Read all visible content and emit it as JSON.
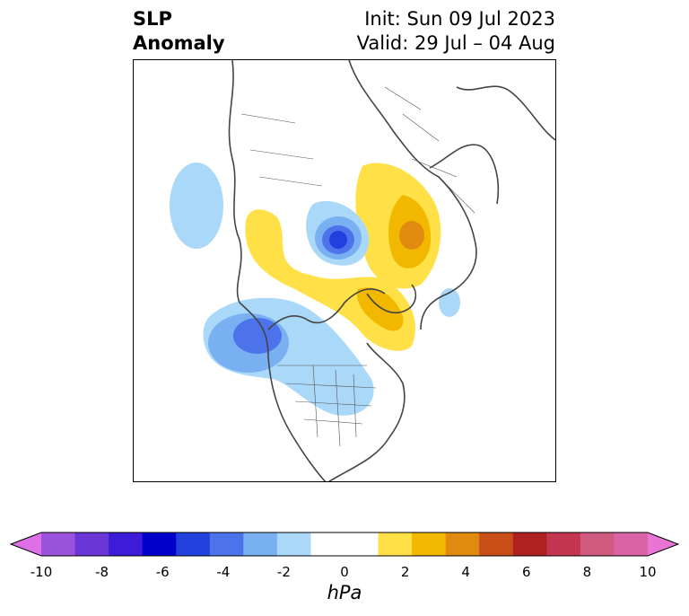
{
  "title": {
    "left_line1": "SLP",
    "left_line2": "Anomaly",
    "init": "Init: Sun 09 Jul 2023",
    "valid": "Valid: 29 Jul – 04 Aug"
  },
  "colorbar": {
    "unit": "hPa",
    "ticks": [
      "-10",
      "-8",
      "-6",
      "-4",
      "-2",
      "0",
      "2",
      "4",
      "6",
      "8",
      "10"
    ],
    "colors": [
      "#dd70e8",
      "#9b53dd",
      "#6a36d8",
      "#3c1cd6",
      "#0000cc",
      "#2240dd",
      "#4d73ea",
      "#78b0f2",
      "#aad8f8",
      "#ffffff",
      "#ffffff",
      "#ffe046",
      "#f2b800",
      "#e08a10",
      "#c85018",
      "#b02020",
      "#c43550",
      "#d05a80",
      "#da62a6",
      "#e874d6"
    ]
  }
}
